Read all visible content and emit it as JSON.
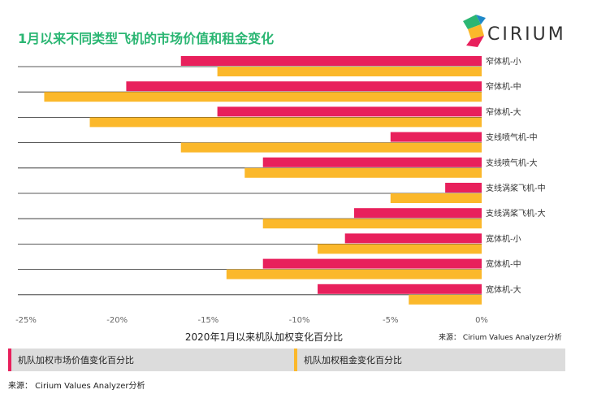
{
  "title": "1月以来不同类型飞机的市场价值和租金变化",
  "logo_text": "CIRIUM",
  "source_inline": "来源：  Cirium Values Analyzer分析",
  "source_bottom": "来源：  Cirium Values Analyzer分析",
  "colors": {
    "market": "#e8205c",
    "rent": "#fbb82b",
    "title": "#2bb673"
  },
  "chart_data": {
    "type": "bar",
    "orientation": "horizontal",
    "title": "1月以来不同类型飞机的市场价值和租金变化",
    "xlabel": "2020年1月以来机队加权变化百分比",
    "ylabel": "",
    "xlim": [
      -25,
      0
    ],
    "x_ticks": [
      "-25%",
      "-20%",
      "-15%",
      "-10%",
      "-5%",
      "0%"
    ],
    "x_tick_values": [
      -25,
      -20,
      -15,
      -10,
      -5,
      0
    ],
    "legend_position": "bottom",
    "categories": [
      "窄体机-小",
      "窄体机-中",
      "窄体机-大",
      "支线喷气机-中",
      "支线喷气机-大",
      "支线涡桨飞机-中",
      "支线涡桨飞机-大",
      "宽体机-小",
      "宽体机-中",
      "宽体机-大"
    ],
    "series": [
      {
        "name": "机队加权市场价值变化百分比",
        "color": "#e8205c",
        "values": [
          -16.5,
          -19.5,
          -14.5,
          -5.0,
          -12.0,
          -2.0,
          -7.0,
          -7.5,
          -12.0,
          -9.0
        ]
      },
      {
        "name": "机队加权租金变化百分比",
        "color": "#fbb82b",
        "values": [
          -14.5,
          -24.0,
          -21.5,
          -16.5,
          -13.0,
          -5.0,
          -12.0,
          -9.0,
          -14.0,
          -4.0
        ]
      }
    ]
  }
}
